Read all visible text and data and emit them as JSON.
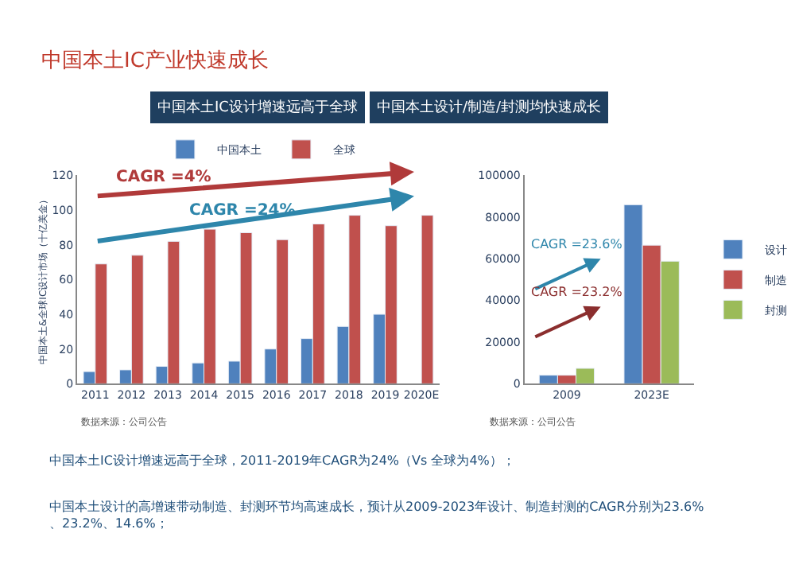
{
  "chart_data": [
    {
      "type": "bar",
      "title": "中国本土IC设计增速远高于全球",
      "ylabel": "中国本土&全球IC设计市场（十亿美金）",
      "categories": [
        "2011",
        "2012",
        "2013",
        "2014",
        "2015",
        "2016",
        "2017",
        "2018",
        "2019",
        "2020E"
      ],
      "series": [
        {
          "name": "中国本土",
          "color": "#4f81bd",
          "values": [
            7,
            8,
            10,
            12,
            13,
            20,
            26,
            33,
            40,
            null
          ]
        },
        {
          "name": "全球",
          "color": "#c0504d",
          "values": [
            69,
            74,
            82,
            89,
            87,
            83,
            92,
            97,
            91,
            97
          ]
        }
      ],
      "ylim": [
        0,
        120
      ],
      "yticks": [
        0,
        20,
        40,
        60,
        80,
        100,
        120
      ],
      "legend": "top",
      "annotations": [
        "中国本土IC产业快速成长",
        "CAGR =4%",
        "CAGR =24%",
        "数据来源：公司公告",
        "中国本土IC设计增速远高于全球，2011-2019年CAGR为24%（Vs 全球为4%）；",
        "中国本土设计的高增速带动制造、封测环节均高速成长，预计从2009-2023年设计、制造封测的CAGR分别为23.6%、23.2%、14.6%；"
      ]
    },
    {
      "type": "bar",
      "title": "中国本土设计/制造/封测均快速成长",
      "categories": [
        "2009",
        "2023E"
      ],
      "series": [
        {
          "name": "设计",
          "color": "#4f81bd",
          "values": [
            4100,
            85900
          ]
        },
        {
          "name": "制造",
          "color": "#c0504d",
          "values": [
            4100,
            66500
          ]
        },
        {
          "name": "封测",
          "color": "#9bbb59",
          "values": [
            7400,
            58800
          ]
        }
      ],
      "ylim": [
        0,
        100000
      ],
      "yticks": [
        0,
        20000,
        40000,
        60000,
        80000,
        100000
      ],
      "legend": "right",
      "annotations": [
        "CAGR =23.6%",
        "CAGR =23.2%",
        "数据来源：公司公告"
      ]
    }
  ]
}
